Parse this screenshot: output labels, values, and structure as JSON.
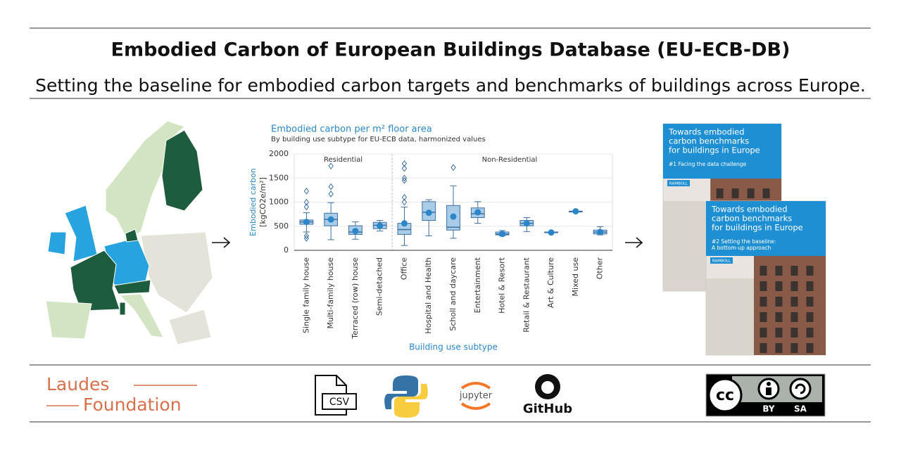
{
  "header": {
    "title": "Embodied Carbon of European Buildings Database (EU-ECB-DB)",
    "subtitle": "Setting the baseline for embodied carbon targets and benchmarks of buildings across Europe."
  },
  "chart_data": {
    "type": "box",
    "title": "Embodied carbon per m² floor area",
    "subtitle": "By building use subtype for EU-ECB data, harmonized values",
    "y_label": [
      "Embodied carbon",
      "[kgCO2e/m²]"
    ],
    "x_label": "Building use subtype",
    "annotations": [
      "Residential",
      "Non-Residential"
    ],
    "categories": [
      "Single family house",
      "Multi-family house",
      "Terraced (row) house",
      "Semi-detached",
      "Office",
      "Hospital and Health",
      "Scholl and daycare",
      "Entertainment",
      "Hotel & Resort",
      "Retail & Restaurant",
      "Art & Culture",
      "Mixed use",
      "Other"
    ],
    "min": [
      380,
      220,
      230,
      400,
      100,
      300,
      250,
      560,
      300,
      390,
      360,
      810,
      320
    ],
    "q1": [
      540,
      510,
      330,
      450,
      330,
      620,
      420,
      680,
      320,
      510,
      370,
      810,
      340
    ],
    "median": [
      590,
      640,
      380,
      520,
      430,
      790,
      480,
      760,
      340,
      560,
      370,
      810,
      380
    ],
    "q3": [
      630,
      770,
      510,
      580,
      560,
      1010,
      930,
      880,
      380,
      620,
      380,
      810,
      420
    ],
    "max": [
      780,
      990,
      590,
      620,
      900,
      1050,
      1340,
      1010,
      410,
      680,
      380,
      810,
      490
    ],
    "mean": [
      590,
      640,
      400,
      510,
      560,
      780,
      700,
      790,
      340,
      560,
      370,
      810,
      380
    ],
    "outliers": [
      [
        250,
        300,
        900,
        1000,
        1230
      ],
      [
        1170,
        1320,
        1750
      ],
      [],
      [],
      [
        1000,
        1100,
        1450,
        1500,
        1700,
        1800
      ],
      [],
      [
        1720
      ],
      [],
      [],
      [],
      [],
      [],
      []
    ],
    "box_color": "#a9cde9",
    "line_color": "#3d6fa0",
    "mean_color": "#2a86c8",
    "ylim": [
      0,
      2000
    ],
    "yticks": [
      0,
      500,
      1000,
      1500,
      2000
    ],
    "grid": true
  },
  "reports": [
    {
      "title_lines": [
        "Towards embodied",
        "carbon benchmarks",
        "for buildings in Europe"
      ],
      "subtitle_lines": [
        "#1 Facing the data challenge"
      ],
      "brand": "RAMBOLL"
    },
    {
      "title_lines": [
        "Towards embodied",
        "carbon benchmarks",
        "for buildings in Europe"
      ],
      "subtitle_lines": [
        "#2 Setting the baseline:",
        "A bottom-up approach"
      ],
      "brand": "RAMBOLL"
    }
  ],
  "footer": {
    "funder": [
      "Laudes",
      "Foundation"
    ],
    "csv": "CSV",
    "jupyter": "jupyter",
    "github": "GitHub",
    "license": {
      "cc": "cc",
      "by": "BY",
      "sa": "SA"
    }
  }
}
